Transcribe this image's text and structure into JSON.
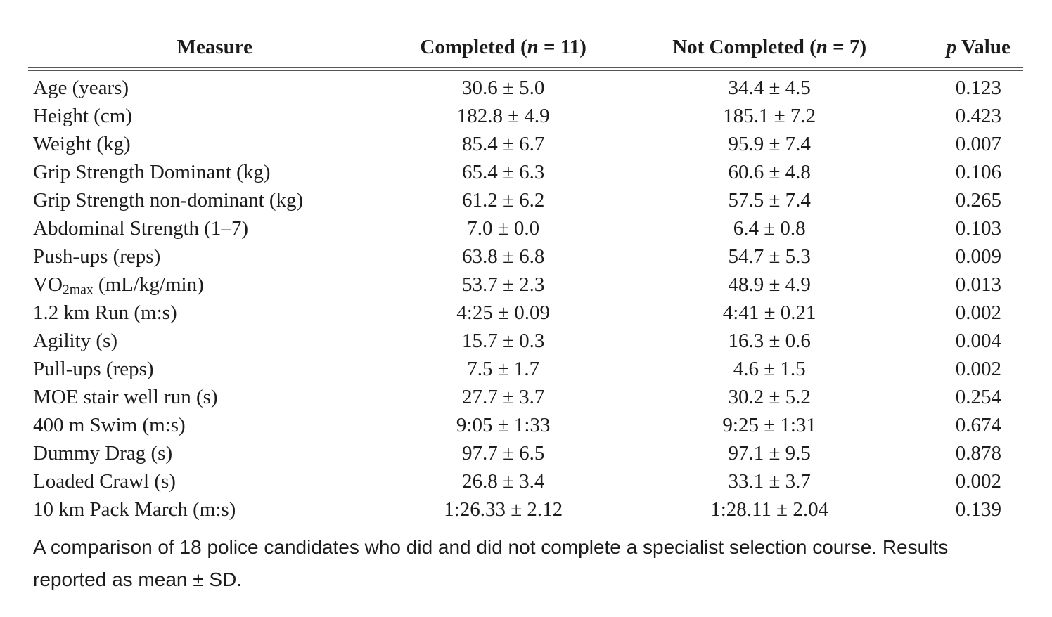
{
  "colors": {
    "background": "#ffffff",
    "text": "#1c1c1c",
    "header_rule": "#575757"
  },
  "table": {
    "header": {
      "measure": {
        "pre": "Measure",
        "it": "",
        "post": ""
      },
      "completed": {
        "pre": "Completed (",
        "it": "n",
        "post": " = 11)"
      },
      "not_completed": {
        "pre": "Not Completed (",
        "it": "n",
        "post": " = 7)"
      },
      "p_value": {
        "pre": "",
        "it": "p",
        "post": " Value"
      }
    },
    "rows": [
      {
        "measure": "Age (years)",
        "measure_sub": "",
        "measure_post": "",
        "completed": "30.6 ± 5.0",
        "not_completed": "34.4 ± 4.5",
        "p": "0.123"
      },
      {
        "measure": "Height (cm)",
        "measure_sub": "",
        "measure_post": "",
        "completed": "182.8 ± 4.9",
        "not_completed": "185.1 ± 7.2",
        "p": "0.423"
      },
      {
        "measure": "Weight (kg)",
        "measure_sub": "",
        "measure_post": "",
        "completed": "85.4 ± 6.7",
        "not_completed": "95.9 ± 7.4",
        "p": "0.007"
      },
      {
        "measure": "Grip Strength Dominant (kg)",
        "measure_sub": "",
        "measure_post": "",
        "completed": "65.4 ± 6.3",
        "not_completed": "60.6 ± 4.8",
        "p": "0.106"
      },
      {
        "measure": "Grip Strength non-dominant (kg)",
        "measure_sub": "",
        "measure_post": "",
        "completed": "61.2 ± 6.2",
        "not_completed": "57.5 ± 7.4",
        "p": "0.265"
      },
      {
        "measure": "Abdominal Strength (1–7)",
        "measure_sub": "",
        "measure_post": "",
        "completed": "7.0 ± 0.0",
        "not_completed": "6.4 ± 0.8",
        "p": "0.103"
      },
      {
        "measure": "Push-ups (reps)",
        "measure_sub": "",
        "measure_post": "",
        "completed": "63.8 ± 6.8",
        "not_completed": "54.7 ± 5.3",
        "p": "0.009"
      },
      {
        "measure": "VO",
        "measure_sub": "2max",
        "measure_post": " (mL/kg/min)",
        "completed": "53.7 ± 2.3",
        "not_completed": "48.9 ± 4.9",
        "p": "0.013"
      },
      {
        "measure": "1.2 km Run (m:s)",
        "measure_sub": "",
        "measure_post": "",
        "completed": "4:25 ± 0.09",
        "not_completed": "4:41 ± 0.21",
        "p": "0.002"
      },
      {
        "measure": "Agility (s)",
        "measure_sub": "",
        "measure_post": "",
        "completed": "15.7 ± 0.3",
        "not_completed": "16.3 ± 0.6",
        "p": "0.004"
      },
      {
        "measure": "Pull-ups (reps)",
        "measure_sub": "",
        "measure_post": "",
        "completed": "7.5 ± 1.7",
        "not_completed": "4.6 ± 1.5",
        "p": "0.002"
      },
      {
        "measure": "MOE stair well run (s)",
        "measure_sub": "",
        "measure_post": "",
        "completed": "27.7 ± 3.7",
        "not_completed": "30.2 ± 5.2",
        "p": "0.254"
      },
      {
        "measure": "400 m Swim (m:s)",
        "measure_sub": "",
        "measure_post": "",
        "completed": "9:05 ± 1:33",
        "not_completed": "9:25 ± 1:31",
        "p": "0.674"
      },
      {
        "measure": "Dummy Drag (s)",
        "measure_sub": "",
        "measure_post": "",
        "completed": "97.7 ± 6.5",
        "not_completed": "97.1 ± 9.5",
        "p": "0.878"
      },
      {
        "measure": "Loaded Crawl (s)",
        "measure_sub": "",
        "measure_post": "",
        "completed": "26.8 ± 3.4",
        "not_completed": "33.1 ± 3.7",
        "p": "0.002"
      },
      {
        "measure": "10 km Pack March (m:s)",
        "measure_sub": "",
        "measure_post": "",
        "completed": "1:26.33 ± 2.12",
        "not_completed": "1:28.11 ± 2.04",
        "p": "0.139"
      }
    ]
  },
  "caption": {
    "line1": "A comparison of 18 police candidates who did and did not complete a specialist selection course. Results",
    "line2": "reported as mean ± SD."
  }
}
